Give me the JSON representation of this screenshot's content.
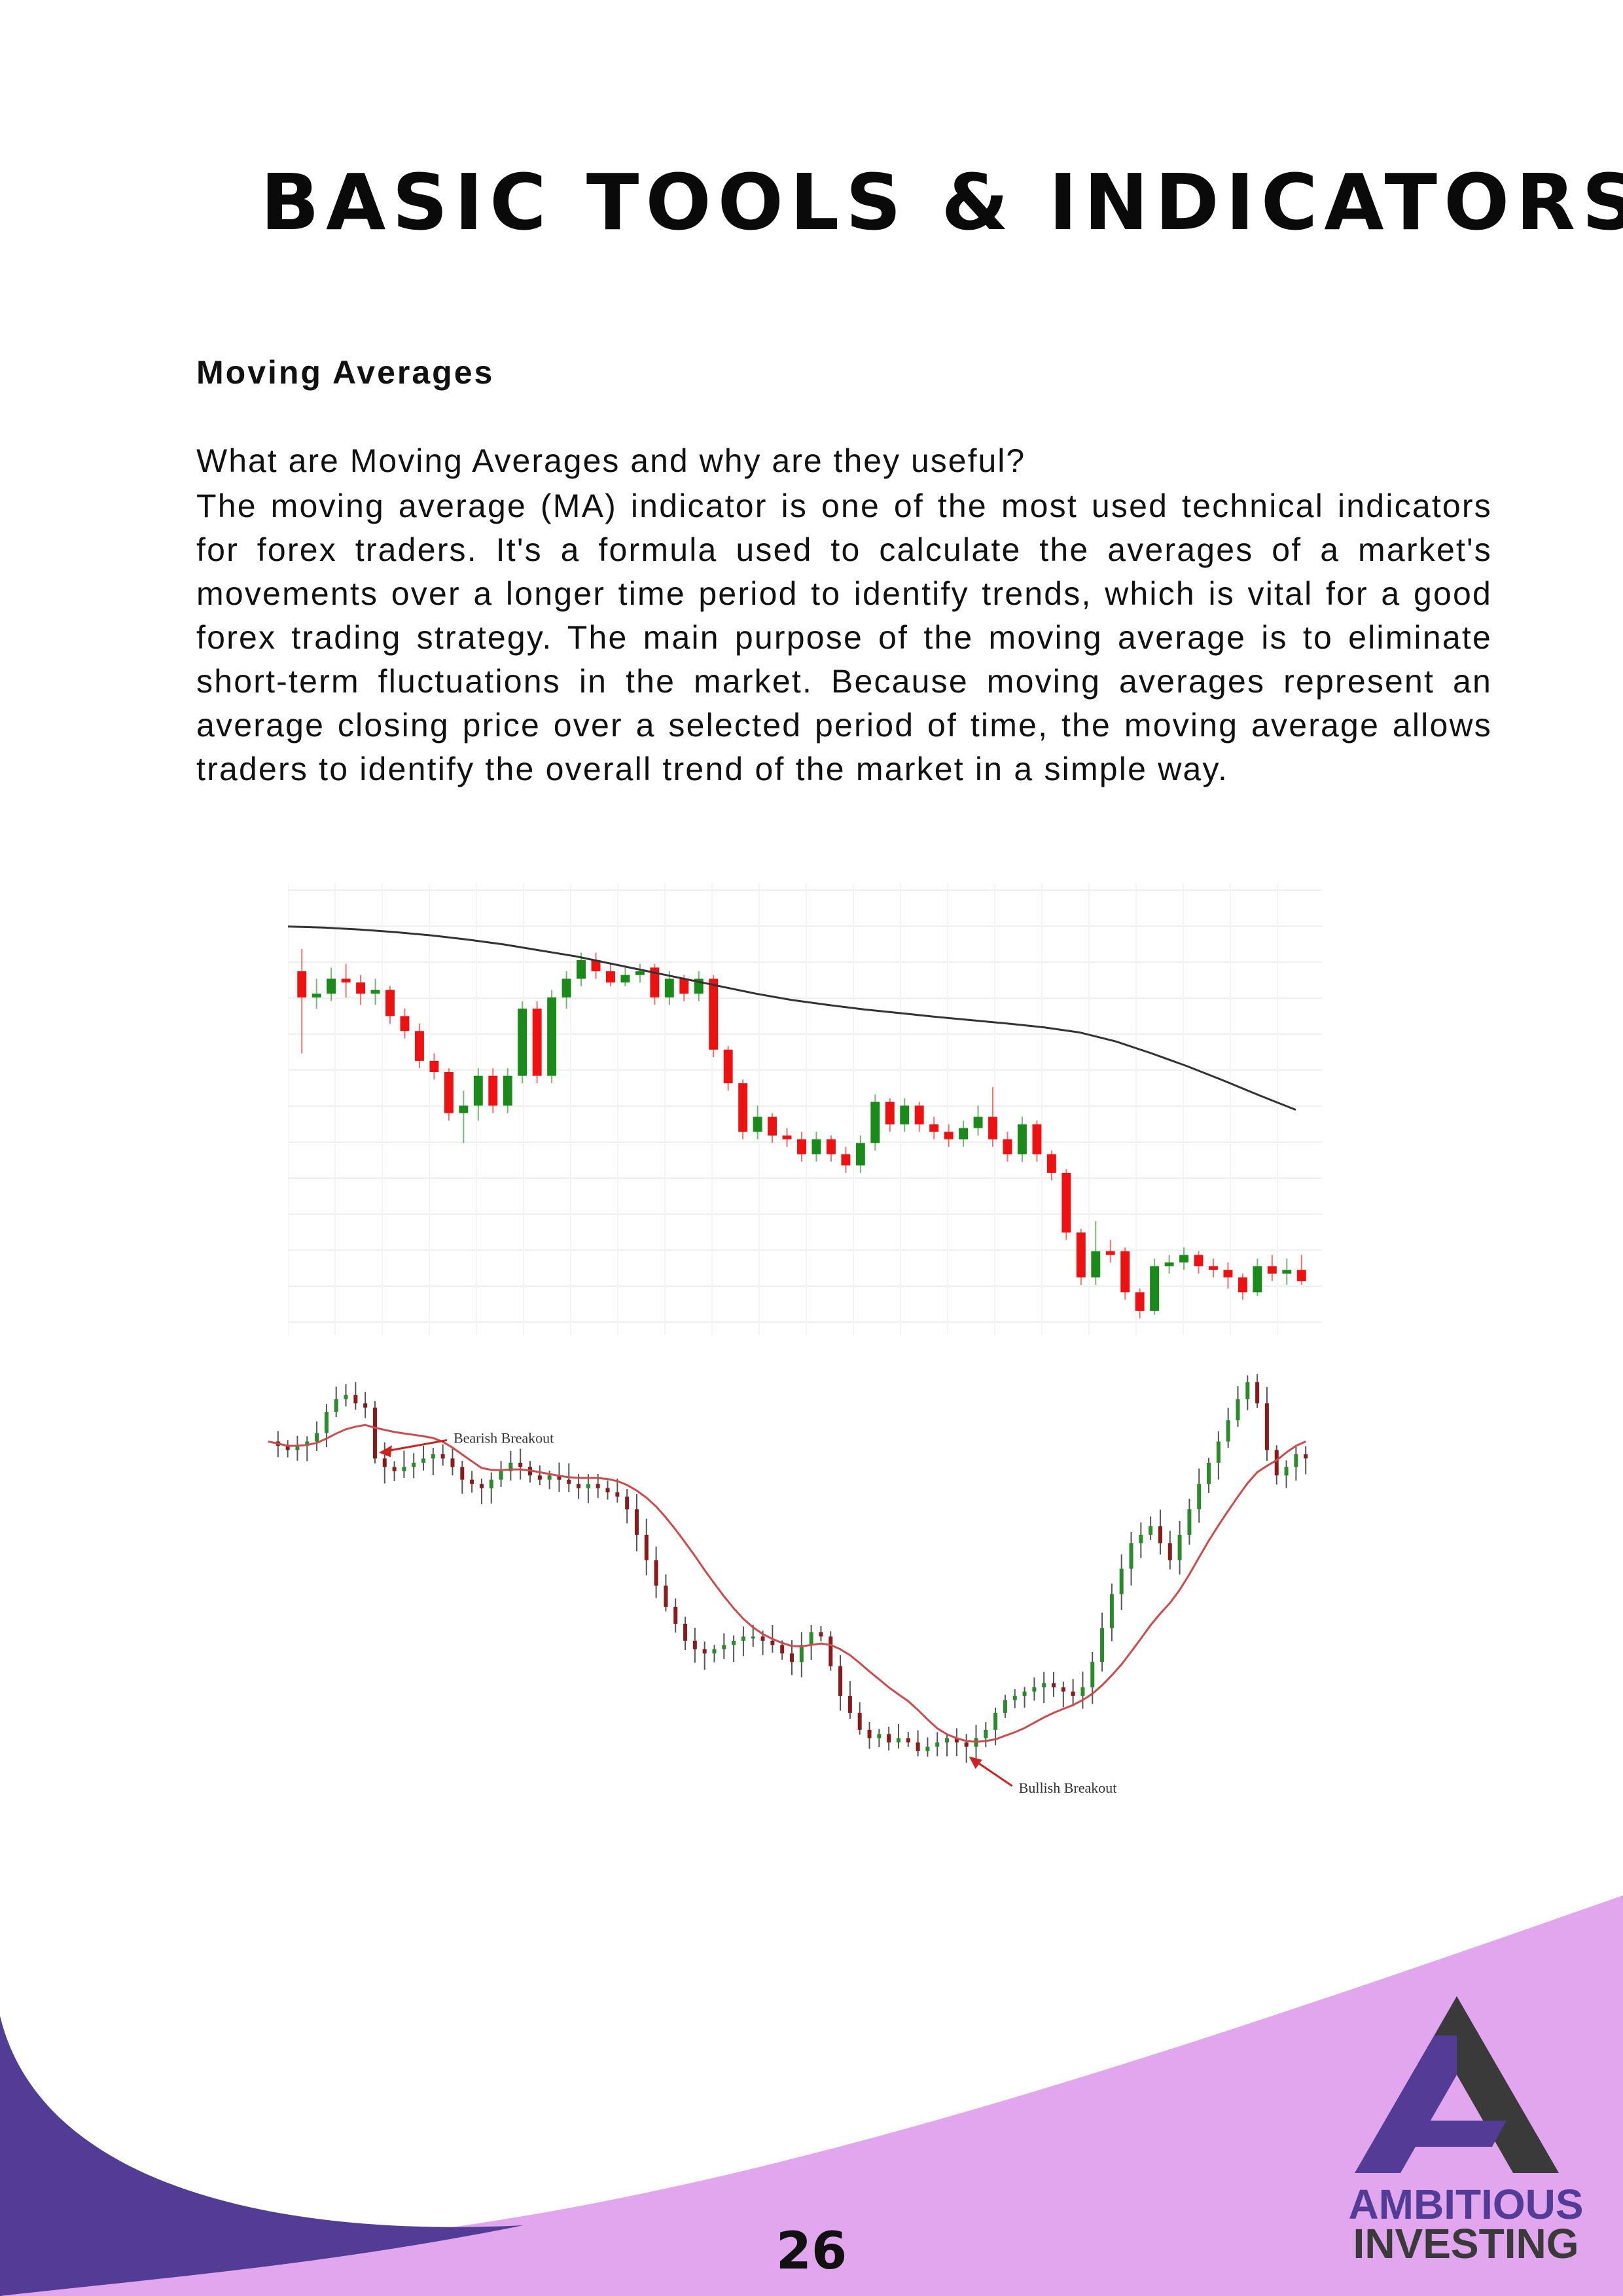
{
  "page": {
    "title": "BASIC TOOLS & INDICATORS",
    "section_heading": "Moving Averages",
    "question": "What are Moving Averages and why are they useful?",
    "body": "The moving average (MA) indicator is one of the most used technical indicators for forex traders. It's a formula used to calculate the averages of a market's movements over a longer time period to identify trends, which is vital for a good forex trading strategy. The main purpose of the moving average is to eliminate short-term fluctuations in the market. Because moving averages represent an average closing price over a selected period of time, the moving average allows traders to identify the overall trend of the market in a simple way.",
    "page_number": "26"
  },
  "charts": {
    "chart1": {
      "up_color": "#1a8a1a",
      "down_color": "#ee1111",
      "ma_color": "#333333",
      "candles": [
        {
          "o": 62,
          "c": 55,
          "h": 68,
          "l": 40
        },
        {
          "o": 55,
          "c": 56,
          "h": 60,
          "l": 52
        },
        {
          "o": 56,
          "c": 60,
          "h": 63,
          "l": 54
        },
        {
          "o": 60,
          "c": 59,
          "h": 64,
          "l": 55
        },
        {
          "o": 59,
          "c": 56,
          "h": 61,
          "l": 53
        },
        {
          "o": 56,
          "c": 57,
          "h": 60,
          "l": 53
        },
        {
          "o": 57,
          "c": 50,
          "h": 58,
          "l": 48
        },
        {
          "o": 50,
          "c": 46,
          "h": 52,
          "l": 44
        },
        {
          "o": 46,
          "c": 38,
          "h": 48,
          "l": 36
        },
        {
          "o": 38,
          "c": 35,
          "h": 40,
          "l": 33
        },
        {
          "o": 35,
          "c": 24,
          "h": 36,
          "l": 22
        },
        {
          "o": 24,
          "c": 26,
          "h": 30,
          "l": 16
        },
        {
          "o": 26,
          "c": 34,
          "h": 36,
          "l": 22
        },
        {
          "o": 34,
          "c": 26,
          "h": 36,
          "l": 24
        },
        {
          "o": 26,
          "c": 34,
          "h": 36,
          "l": 24
        },
        {
          "o": 34,
          "c": 52,
          "h": 54,
          "l": 32
        },
        {
          "o": 52,
          "c": 34,
          "h": 54,
          "l": 32
        },
        {
          "o": 34,
          "c": 55,
          "h": 57,
          "l": 32
        },
        {
          "o": 55,
          "c": 60,
          "h": 62,
          "l": 52
        },
        {
          "o": 60,
          "c": 65,
          "h": 67,
          "l": 58
        },
        {
          "o": 65,
          "c": 62,
          "h": 67,
          "l": 60
        },
        {
          "o": 62,
          "c": 59,
          "h": 64,
          "l": 58
        },
        {
          "o": 59,
          "c": 61,
          "h": 63,
          "l": 58
        },
        {
          "o": 61,
          "c": 62,
          "h": 64,
          "l": 59
        },
        {
          "o": 63,
          "c": 55,
          "h": 64,
          "l": 53
        },
        {
          "o": 55,
          "c": 60,
          "h": 62,
          "l": 53
        },
        {
          "o": 60,
          "c": 56,
          "h": 61,
          "l": 54
        },
        {
          "o": 56,
          "c": 60,
          "h": 62,
          "l": 54
        },
        {
          "o": 60,
          "c": 41,
          "h": 61,
          "l": 39
        },
        {
          "o": 41,
          "c": 32,
          "h": 42,
          "l": 30
        },
        {
          "o": 32,
          "c": 19,
          "h": 33,
          "l": 17
        },
        {
          "o": 19,
          "c": 23,
          "h": 26,
          "l": 17
        },
        {
          "o": 23,
          "c": 18,
          "h": 24,
          "l": 16
        },
        {
          "o": 18,
          "c": 17,
          "h": 20,
          "l": 15
        },
        {
          "o": 17,
          "c": 13,
          "h": 19,
          "l": 11
        },
        {
          "o": 13,
          "c": 17,
          "h": 19,
          "l": 11
        },
        {
          "o": 17,
          "c": 13,
          "h": 18,
          "l": 11
        },
        {
          "o": 13,
          "c": 10,
          "h": 15,
          "l": 8
        },
        {
          "o": 10,
          "c": 16,
          "h": 18,
          "l": 8
        },
        {
          "o": 16,
          "c": 27,
          "h": 29,
          "l": 14
        },
        {
          "o": 27,
          "c": 21,
          "h": 28,
          "l": 19
        },
        {
          "o": 21,
          "c": 26,
          "h": 28,
          "l": 19
        },
        {
          "o": 26,
          "c": 21,
          "h": 27,
          "l": 19
        },
        {
          "o": 21,
          "c": 19,
          "h": 23,
          "l": 17
        },
        {
          "o": 19,
          "c": 17,
          "h": 21,
          "l": 15
        },
        {
          "o": 17,
          "c": 20,
          "h": 22,
          "l": 15
        },
        {
          "o": 20,
          "c": 23,
          "h": 26,
          "l": 18
        },
        {
          "o": 23,
          "c": 17,
          "h": 31,
          "l": 15
        },
        {
          "o": 17,
          "c": 13,
          "h": 19,
          "l": 11
        },
        {
          "o": 13,
          "c": 21,
          "h": 23,
          "l": 11
        },
        {
          "o": 21,
          "c": 13,
          "h": 22,
          "l": 11
        },
        {
          "o": 13,
          "c": 8,
          "h": 14,
          "l": 6
        },
        {
          "o": 8,
          "c": -8,
          "h": 9,
          "l": -10
        },
        {
          "o": -8,
          "c": -20,
          "h": -7,
          "l": -22
        },
        {
          "o": -20,
          "c": -13,
          "h": -5,
          "l": -22
        },
        {
          "o": -13,
          "c": -14,
          "h": -10,
          "l": -16
        },
        {
          "o": -13,
          "c": -24,
          "h": -12,
          "l": -26
        },
        {
          "o": -24,
          "c": -29,
          "h": -23,
          "l": -31
        },
        {
          "o": -29,
          "c": -17,
          "h": -15,
          "l": -30
        },
        {
          "o": -17,
          "c": -16,
          "h": -14,
          "l": -19
        },
        {
          "o": -16,
          "c": -14,
          "h": -12,
          "l": -18
        },
        {
          "o": -14,
          "c": -17,
          "h": -13,
          "l": -19
        },
        {
          "o": -17,
          "c": -18,
          "h": -15,
          "l": -20
        },
        {
          "o": -18,
          "c": -20,
          "h": -16,
          "l": -23
        },
        {
          "o": -20,
          "c": -24,
          "h": -19,
          "l": -26
        },
        {
          "o": -24,
          "c": -17,
          "h": -15,
          "l": -25
        },
        {
          "o": -17,
          "c": -19,
          "h": -14,
          "l": -21
        },
        {
          "o": -19,
          "c": -18,
          "h": -15,
          "l": -22
        },
        {
          "o": -18,
          "c": -21,
          "h": -14,
          "l": -22
        }
      ],
      "ma": [
        74,
        73.7,
        73.2,
        72.5,
        71.6,
        70.5,
        69.2,
        67.6,
        66,
        64,
        62,
        60,
        58,
        56,
        54.3,
        53,
        51.8,
        50.8,
        49.8,
        48.9,
        48,
        47,
        45.6,
        43.2,
        40,
        36.5,
        32.7,
        28.7,
        24.9
      ]
    },
    "chart2": {
      "up_color": "#2b8a2b",
      "down_color": "#8b1a1a",
      "ma_color": "#cc4b4b",
      "annotation_bearish": "Bearish Breakout",
      "annotation_bullish": "Bullish Breakout",
      "closes": [
        88,
        87,
        86,
        87,
        88,
        90,
        95,
        98,
        99,
        97,
        96,
        84,
        82,
        81,
        82,
        83,
        84,
        85,
        84,
        82,
        79,
        78,
        77,
        79,
        81,
        83,
        82,
        80,
        79,
        80,
        79,
        78,
        77,
        78,
        77,
        76,
        75,
        72,
        66,
        60,
        54,
        49,
        45,
        41,
        39,
        38,
        39,
        40,
        41,
        42,
        42,
        41,
        40,
        38,
        36,
        40,
        43,
        42,
        35,
        28,
        24,
        20,
        18,
        19,
        17,
        18,
        17,
        15,
        16,
        17,
        18,
        17,
        16,
        18,
        20,
        24,
        27,
        28,
        29,
        30,
        31,
        30,
        29,
        28,
        30,
        36,
        44,
        52,
        58,
        64,
        66,
        68,
        64,
        60,
        66,
        72,
        78,
        83,
        88,
        93,
        98,
        102,
        97,
        86,
        80,
        82,
        85,
        84
      ]
    }
  }
}
